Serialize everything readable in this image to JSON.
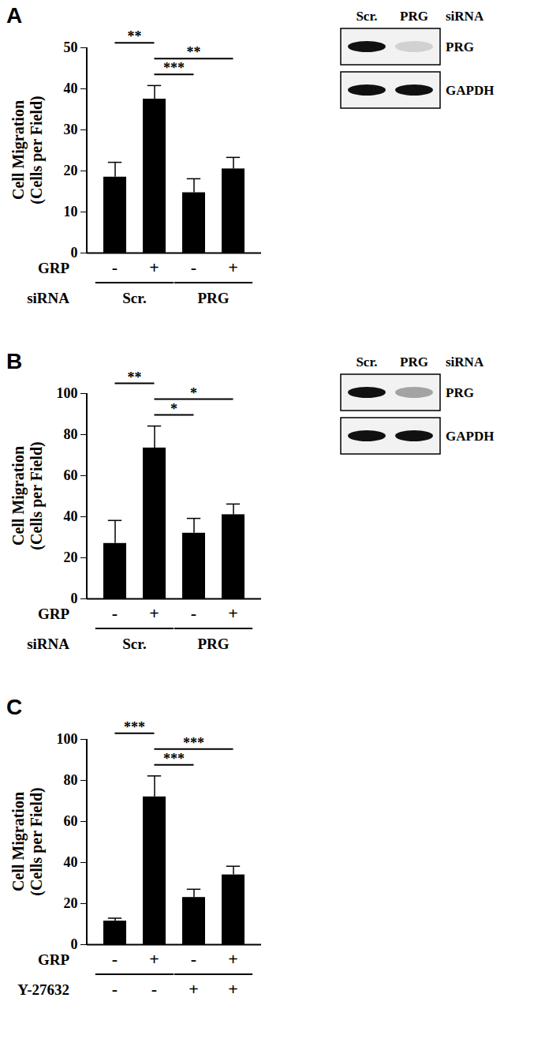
{
  "chart_data": [
    {
      "type": "bar",
      "panel": "A",
      "ylabel": "Cell Migration (Cells per Field)",
      "color": "#000000",
      "categories": [
        "-",
        "+",
        "-",
        "+"
      ],
      "values": [
        18.5,
        37.5,
        14.7,
        20.5
      ],
      "errors": [
        3.5,
        3.2,
        3.3,
        2.7
      ],
      "ylim": [
        0,
        50
      ],
      "yticks": [
        0,
        10,
        20,
        30,
        40,
        50
      ],
      "factors": [
        {
          "label": "GRP",
          "values": [
            "-",
            "+",
            "-",
            "+"
          ]
        },
        {
          "label": "siRNA",
          "groups": [
            "Scr.",
            "PRG"
          ]
        }
      ],
      "significance": [
        {
          "from": 0,
          "to": 1,
          "label": "**"
        },
        {
          "from": 1,
          "to": 3,
          "label": "**"
        },
        {
          "from": 1,
          "to": 2,
          "label": "***"
        }
      ],
      "blot": {
        "header": "siRNA",
        "columns": [
          "Scr.",
          "PRG"
        ],
        "rows": [
          "PRG",
          "GAPDH"
        ],
        "bands": [
          [
            1,
            0.15
          ],
          [
            1,
            1
          ]
        ]
      }
    },
    {
      "type": "bar",
      "panel": "B",
      "ylabel": "Cell Migration (Cells per Field)",
      "color": "#000000",
      "categories": [
        "-",
        "+",
        "-",
        "+"
      ],
      "values": [
        27,
        73.5,
        32,
        41
      ],
      "errors": [
        11,
        10.5,
        7,
        5
      ],
      "ylim": [
        0,
        100
      ],
      "yticks": [
        0,
        20,
        40,
        60,
        80,
        100
      ],
      "factors": [
        {
          "label": "GRP",
          "values": [
            "-",
            "+",
            "-",
            "+"
          ]
        },
        {
          "label": "siRNA",
          "groups": [
            "Scr.",
            "PRG"
          ]
        }
      ],
      "significance": [
        {
          "from": 0,
          "to": 1,
          "label": "**"
        },
        {
          "from": 1,
          "to": 3,
          "label": "*"
        },
        {
          "from": 1,
          "to": 2,
          "label": "*"
        }
      ],
      "blot": {
        "header": "siRNA",
        "columns": [
          "Scr.",
          "PRG"
        ],
        "rows": [
          "PRG",
          "GAPDH"
        ],
        "bands": [
          [
            1,
            0.35
          ],
          [
            1,
            1
          ]
        ]
      }
    },
    {
      "type": "bar",
      "panel": "C",
      "ylabel": "Cell Migration (Cells per Field)",
      "color": "#000000",
      "categories": [
        "-",
        "+",
        "-",
        "+"
      ],
      "values": [
        11.5,
        72,
        23,
        34
      ],
      "errors": [
        1.2,
        10,
        3.8,
        4
      ],
      "ylim": [
        0,
        100
      ],
      "yticks": [
        0,
        20,
        40,
        60,
        80,
        100
      ],
      "factors": [
        {
          "label": "GRP",
          "values": [
            "-",
            "+",
            "-",
            "+"
          ]
        },
        {
          "label": "Y-27632",
          "values": [
            "-",
            "-",
            "+",
            "+"
          ]
        }
      ],
      "significance": [
        {
          "from": 0,
          "to": 1,
          "label": "***"
        },
        {
          "from": 1,
          "to": 3,
          "label": "***"
        },
        {
          "from": 1,
          "to": 2,
          "label": "***"
        }
      ]
    }
  ]
}
